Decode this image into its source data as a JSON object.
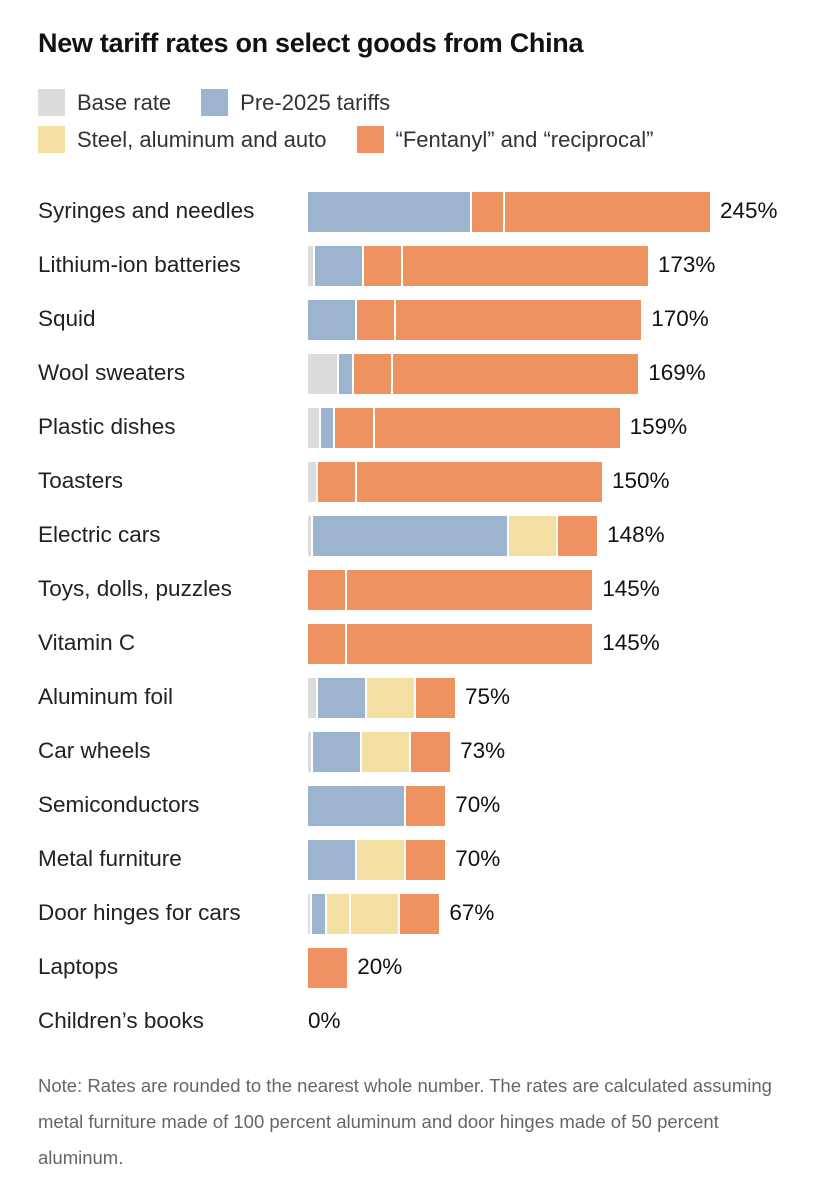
{
  "chart_data": {
    "type": "bar",
    "orientation": "horizontal",
    "stacked": true,
    "title": "New tariff rates on select goods from China",
    "legend": [
      {
        "key": "base",
        "label": "Base rate",
        "color": "#dcdcdc"
      },
      {
        "key": "pre2025",
        "label": "Pre-2025 tariffs",
        "color": "#9db4d0"
      },
      {
        "key": "steel",
        "label": "Steel, aluminum and auto",
        "color": "#f5e0a3"
      },
      {
        "key": "fentanyl",
        "label": "“Fentanyl” and “reciprocal”",
        "color": "#ee9262"
      }
    ],
    "legend_placement": "top",
    "categories": [
      "Syringes and needles",
      "Lithium-ion batteries",
      "Squid",
      "Wool sweaters",
      "Plastic dishes",
      "Toasters",
      "Electric cars",
      "Toys, dolls, puzzles",
      "Vitamin C",
      "Aluminum foil",
      "Car wheels",
      "Semiconductors",
      "Metal furniture",
      "Door hinges for cars",
      "Laptops",
      "Children’s books"
    ],
    "totals_labels": [
      "245%",
      "173%",
      "170%",
      "169%",
      "159%",
      "150%",
      "148%",
      "145%",
      "145%",
      "75%",
      "73%",
      "70%",
      "70%",
      "67%",
      "20%",
      "0%"
    ],
    "segments": [
      [
        [
          "pre2025",
          100
        ],
        [
          "fentanyl",
          20
        ],
        [
          "fentanyl",
          125
        ]
      ],
      [
        [
          "base",
          3.4
        ],
        [
          "pre2025",
          25
        ],
        [
          "fentanyl",
          20
        ],
        [
          "fentanyl",
          125
        ]
      ],
      [
        [
          "pre2025",
          25
        ],
        [
          "fentanyl",
          20
        ],
        [
          "fentanyl",
          125
        ]
      ],
      [
        [
          "base",
          16
        ],
        [
          "pre2025",
          7.5
        ],
        [
          "fentanyl",
          20
        ],
        [
          "fentanyl",
          125
        ]
      ],
      [
        [
          "base",
          6.5
        ],
        [
          "pre2025",
          7.5
        ],
        [
          "fentanyl",
          20
        ],
        [
          "fentanyl",
          125
        ]
      ],
      [
        [
          "base",
          5
        ],
        [
          "fentanyl",
          20
        ],
        [
          "fentanyl",
          125
        ]
      ],
      [
        [
          "base",
          2.5
        ],
        [
          "pre2025",
          100
        ],
        [
          "steel",
          25
        ],
        [
          "fentanyl",
          20
        ]
      ],
      [
        [
          "fentanyl",
          20
        ],
        [
          "fentanyl",
          125
        ]
      ],
      [
        [
          "fentanyl",
          20
        ],
        [
          "fentanyl",
          125
        ]
      ],
      [
        [
          "base",
          5
        ],
        [
          "pre2025",
          25
        ],
        [
          "steel",
          25
        ],
        [
          "fentanyl",
          20
        ]
      ],
      [
        [
          "base",
          2.5
        ],
        [
          "pre2025",
          25
        ],
        [
          "steel",
          25
        ],
        [
          "fentanyl",
          20
        ]
      ],
      [
        [
          "pre2025",
          50
        ],
        [
          "fentanyl",
          20
        ]
      ],
      [
        [
          "pre2025",
          25
        ],
        [
          "steel",
          25
        ],
        [
          "fentanyl",
          20
        ]
      ],
      [
        [
          "base",
          2
        ],
        [
          "pre2025",
          7.5
        ],
        [
          "steel",
          12.5
        ],
        [
          "steel",
          25
        ],
        [
          "fentanyl",
          20
        ]
      ],
      [
        [
          "fentanyl",
          20
        ]
      ],
      []
    ],
    "note": "Note: Rates are rounded to the nearest whole number. The rates are calculated assuming metal furniture made of 100 percent aluminum and door hinges made of 50 percent aluminum."
  }
}
